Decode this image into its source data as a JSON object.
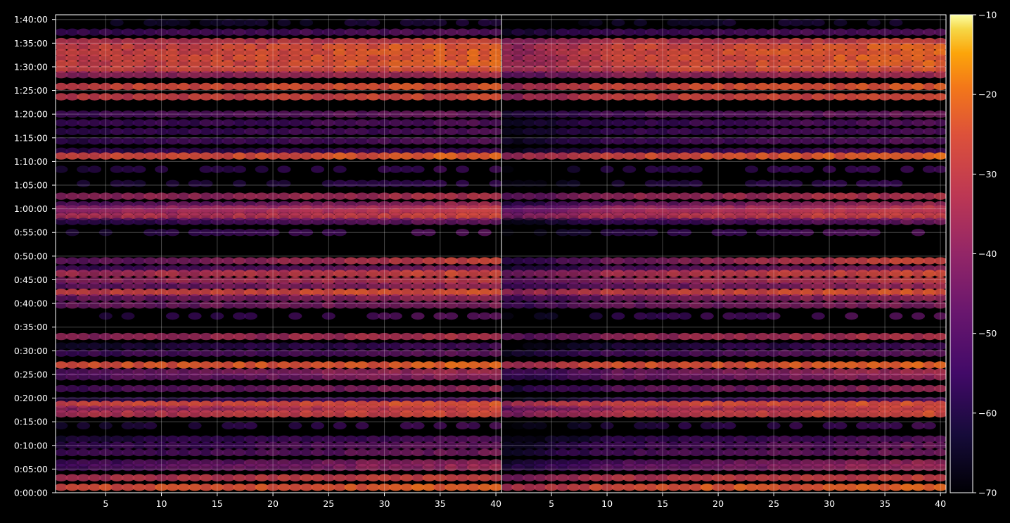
{
  "chart_data": {
    "type": "heatmap",
    "background": "#000000",
    "colormap": "inferno",
    "grid": true,
    "colorbar": {
      "range": [
        -70,
        -10
      ],
      "ticks": [
        -10,
        -20,
        -30,
        -40,
        -50,
        -60,
        -70
      ],
      "tick_labels": [
        "−10",
        "−20",
        "−30",
        "−40",
        "−50",
        "−60",
        "−70"
      ]
    },
    "y_axis": {
      "unit": "seconds",
      "range": [
        0,
        6060
      ],
      "ticks": [
        0,
        300,
        600,
        900,
        1200,
        1500,
        1800,
        2100,
        2400,
        2700,
        3000,
        3300,
        3600,
        3900,
        4200,
        4500,
        4800,
        5100,
        5400,
        5700,
        6000
      ],
      "tick_labels": [
        "0:00:00",
        "0:05:00",
        "0:10:00",
        "0:15:00",
        "0:20:00",
        "0:25:00",
        "0:30:00",
        "0:35:00",
        "0:40:00",
        "0:45:00",
        "0:50:00",
        "0:55:00",
        "1:00:00",
        "1:05:00",
        "1:10:00",
        "1:15:00",
        "1:20:00",
        "1:25:00",
        "1:30:00",
        "1:35:00",
        "1:40:00"
      ]
    },
    "panels": [
      {
        "name": "left",
        "x_range": [
          1,
          40
        ],
        "x_ticks": [
          5,
          10,
          15,
          20,
          25,
          30,
          35,
          40
        ],
        "x_tick_labels": [
          "5",
          "10",
          "15",
          "20",
          "25",
          "30",
          "35",
          "40"
        ]
      },
      {
        "name": "right",
        "x_range": [
          1,
          40
        ],
        "x_ticks": [
          5,
          10,
          15,
          20,
          25,
          30,
          35,
          40
        ],
        "x_tick_labels": [
          "5",
          "10",
          "15",
          "20",
          "25",
          "30",
          "35",
          "40"
        ]
      }
    ],
    "bands": [
      {
        "time": 5960,
        "start": -66,
        "end": -60,
        "sparse": true
      },
      {
        "time": 5840,
        "start": -54,
        "end": -48
      },
      {
        "time": 5720,
        "start": -34,
        "end": -28
      },
      {
        "time": 5650,
        "start": -30,
        "end": -22
      },
      {
        "time": 5580,
        "start": -30,
        "end": -22
      },
      {
        "time": 5510,
        "start": -30,
        "end": -22
      },
      {
        "time": 5440,
        "start": -30,
        "end": -22
      },
      {
        "time": 5370,
        "start": -30,
        "end": -24
      },
      {
        "time": 5300,
        "start": -40,
        "end": -34
      },
      {
        "time": 5150,
        "start": -28,
        "end": -24
      },
      {
        "time": 5020,
        "start": -30,
        "end": -26
      },
      {
        "time": 4800,
        "start": -52,
        "end": -44
      },
      {
        "time": 4690,
        "start": -56,
        "end": -48
      },
      {
        "time": 4580,
        "start": -56,
        "end": -50
      },
      {
        "time": 4460,
        "start": -56,
        "end": -48
      },
      {
        "time": 4330,
        "start": -58,
        "end": -52
      },
      {
        "time": 4270,
        "start": -28,
        "end": -22
      },
      {
        "time": 4100,
        "start": -60,
        "end": -54,
        "sparse": true
      },
      {
        "time": 3920,
        "start": -62,
        "end": -56,
        "sparse": true
      },
      {
        "time": 3760,
        "start": -40,
        "end": -32
      },
      {
        "time": 3650,
        "start": -50,
        "end": -36
      },
      {
        "time": 3600,
        "start": -42,
        "end": -32
      },
      {
        "time": 3560,
        "start": -40,
        "end": -30
      },
      {
        "time": 3500,
        "start": -36,
        "end": -28
      },
      {
        "time": 3440,
        "start": -58,
        "end": -44
      },
      {
        "time": 3300,
        "start": -62,
        "end": -48,
        "sparse": true
      },
      {
        "time": 2940,
        "start": -48,
        "end": -26
      },
      {
        "time": 2840,
        "start": -54,
        "end": -40
      },
      {
        "time": 2780,
        "start": -36,
        "end": -26
      },
      {
        "time": 2690,
        "start": -40,
        "end": -30
      },
      {
        "time": 2620,
        "start": -48,
        "end": -36
      },
      {
        "time": 2540,
        "start": -30,
        "end": -24
      },
      {
        "time": 2470,
        "start": -46,
        "end": -36
      },
      {
        "time": 2380,
        "start": -46,
        "end": -40
      },
      {
        "time": 2240,
        "start": -60,
        "end": -48,
        "sparse": true
      },
      {
        "time": 1980,
        "start": -40,
        "end": -32
      },
      {
        "time": 1860,
        "start": -62,
        "end": -52
      },
      {
        "time": 1770,
        "start": -54,
        "end": -46
      },
      {
        "time": 1620,
        "start": -26,
        "end": -22
      },
      {
        "time": 1530,
        "start": -48,
        "end": -34
      },
      {
        "time": 1470,
        "start": -50,
        "end": -38
      },
      {
        "time": 1320,
        "start": -52,
        "end": -36
      },
      {
        "time": 1170,
        "start": -60,
        "end": -50
      },
      {
        "time": 1120,
        "start": -28,
        "end": -24
      },
      {
        "time": 1060,
        "start": -40,
        "end": -28
      },
      {
        "time": 1000,
        "start": -34,
        "end": -26
      },
      {
        "time": 850,
        "start": -62,
        "end": -52,
        "sparse": true
      },
      {
        "time": 680,
        "start": -60,
        "end": -48
      },
      {
        "time": 600,
        "start": -56,
        "end": -44
      },
      {
        "time": 510,
        "start": -54,
        "end": -42
      },
      {
        "time": 380,
        "start": -54,
        "end": -36
      },
      {
        "time": 320,
        "start": -52,
        "end": -36
      },
      {
        "time": 190,
        "start": -34,
        "end": -28
      },
      {
        "time": 70,
        "start": -26,
        "end": -22
      }
    ]
  }
}
